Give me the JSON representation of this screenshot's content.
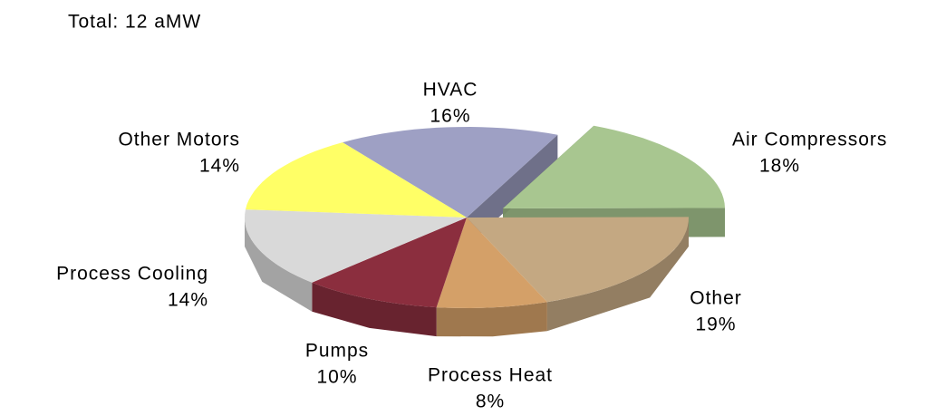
{
  "chart_data": {
    "type": "pie",
    "title": "Total: 12 aMW",
    "categories": [
      "HVAC",
      "Air Compressors",
      "Other",
      "Process Heat",
      "Pumps",
      "Process Cooling",
      "Other Motors"
    ],
    "values": [
      16,
      18,
      19,
      8,
      10,
      14,
      14
    ],
    "value_labels": [
      "16%",
      "18%",
      "19%",
      "8%",
      "10%",
      "14%",
      "14%"
    ],
    "colors": [
      "#9ea0c4",
      "#a8c690",
      "#c4a882",
      "#d4a068",
      "#8b2e3e",
      "#d9d9d9",
      "#ffff66"
    ]
  }
}
